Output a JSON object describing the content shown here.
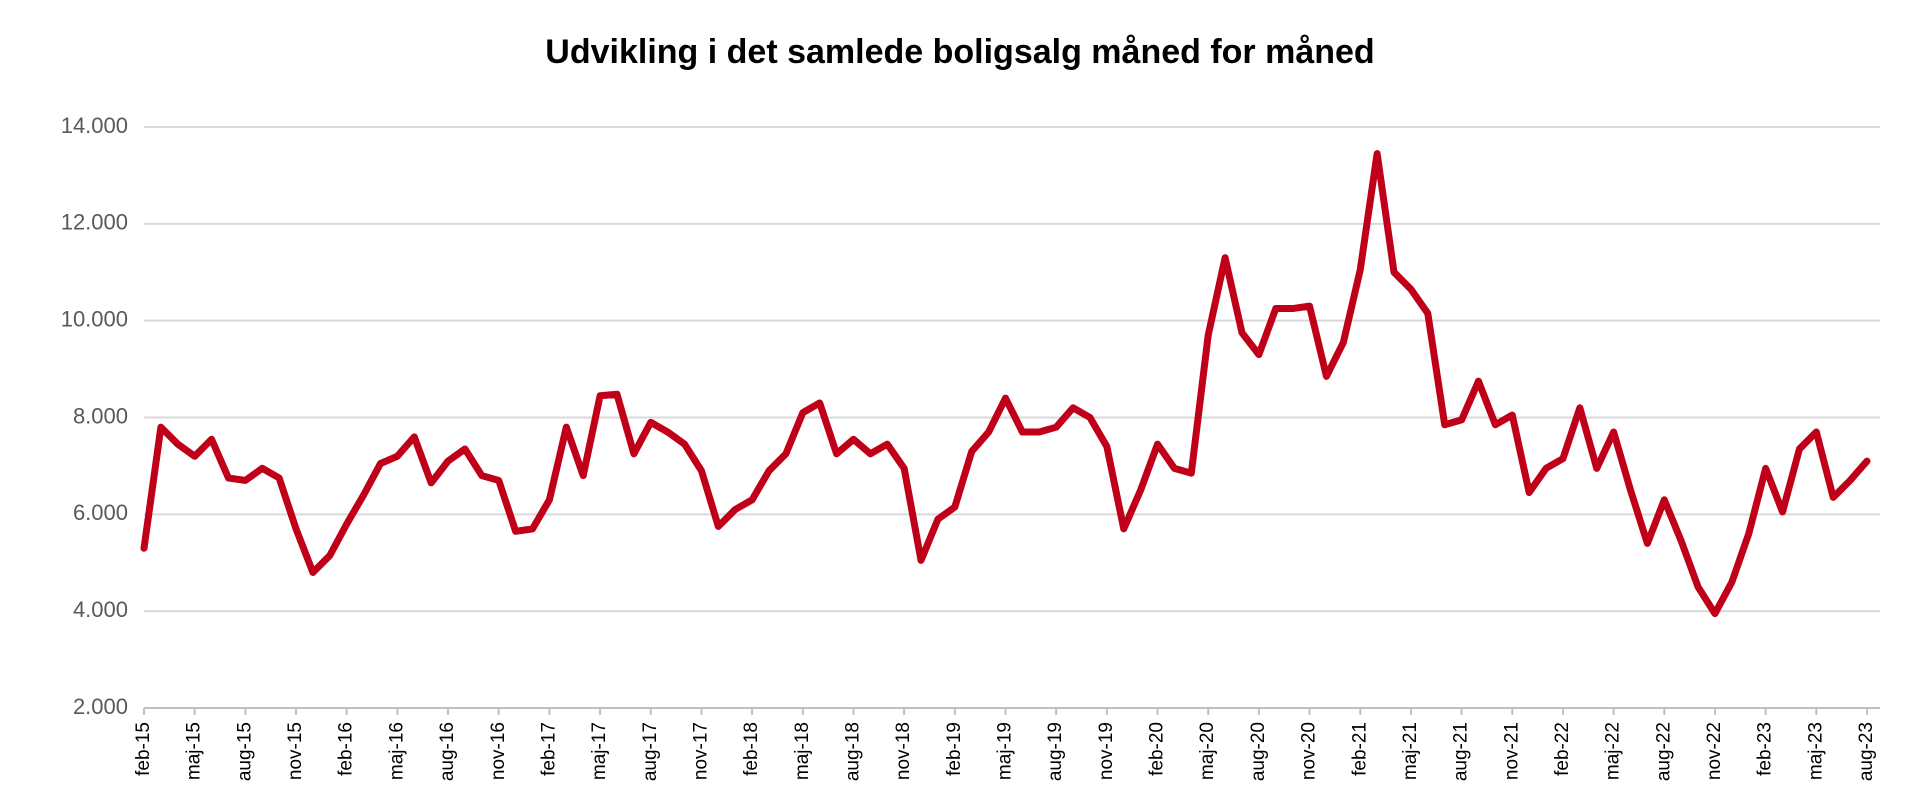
{
  "chart_data": {
    "type": "line",
    "title": "Udvikling i det samlede boligsalg måned for måned",
    "categories": [
      "feb-15",
      null,
      null,
      "maj-15",
      null,
      null,
      "aug-15",
      null,
      null,
      "nov-15",
      null,
      null,
      "feb-16",
      null,
      null,
      "maj-16",
      null,
      null,
      "aug-16",
      null,
      null,
      "nov-16",
      null,
      null,
      "feb-17",
      null,
      null,
      "maj-17",
      null,
      null,
      "aug-17",
      null,
      null,
      "nov-17",
      null,
      null,
      "feb-18",
      null,
      null,
      "maj-18",
      null,
      null,
      "aug-18",
      null,
      null,
      "nov-18",
      null,
      null,
      "feb-19",
      null,
      null,
      "maj-19",
      null,
      null,
      "aug-19",
      null,
      null,
      "nov-19",
      null,
      null,
      "feb-20",
      null,
      null,
      "maj-20",
      null,
      null,
      "aug-20",
      null,
      null,
      "nov-20",
      null,
      null,
      "feb-21",
      null,
      null,
      "maj-21",
      null,
      null,
      "aug-21",
      null,
      null,
      "nov-21",
      null,
      null,
      "feb-22",
      null,
      null,
      "maj-22",
      null,
      null,
      "aug-22",
      null,
      null,
      "nov-22",
      null,
      null,
      "feb-23",
      null,
      null,
      "maj-23",
      null,
      null,
      "aug-23"
    ],
    "values": [
      5300,
      7800,
      7450,
      7200,
      7550,
      6750,
      6700,
      6950,
      6750,
      5700,
      4800,
      5150,
      5800,
      6400,
      7050,
      7200,
      7600,
      6650,
      7100,
      7350,
      6800,
      6700,
      5650,
      5700,
      6300,
      7800,
      6800,
      8450,
      8480,
      7250,
      7900,
      7700,
      7450,
      6900,
      5750,
      6100,
      6300,
      6900,
      7250,
      8100,
      8300,
      7250,
      7550,
      7250,
      7450,
      6950,
      5050,
      5900,
      6150,
      7300,
      7700,
      8400,
      7700,
      7700,
      7800,
      8200,
      8000,
      7400,
      5700,
      6500,
      7450,
      6950,
      6850,
      9700,
      11300,
      9750,
      9300,
      10250,
      10250,
      10300,
      8850,
      9550,
      11050,
      13450,
      11000,
      10650,
      10150,
      7850,
      7950,
      8750,
      7850,
      8050,
      6450,
      6950,
      7150,
      8200,
      6950,
      7700,
      6500,
      5400,
      6300,
      5450,
      4500,
      3950,
      4600,
      5600,
      6950,
      6050,
      7350,
      7700,
      6350,
      6700,
      7100
    ],
    "color": "#c00018",
    "ylim": [
      2000,
      14000
    ],
    "yticks": [
      {
        "value": 2000,
        "label": "2.000"
      },
      {
        "value": 4000,
        "label": "4.000"
      },
      {
        "value": 6000,
        "label": "6.000"
      },
      {
        "value": 8000,
        "label": "8.000"
      },
      {
        "value": 10000,
        "label": "10.000"
      },
      {
        "value": 12000,
        "label": "12.000"
      },
      {
        "value": 14000,
        "label": "14.000"
      }
    ],
    "grid": true
  }
}
